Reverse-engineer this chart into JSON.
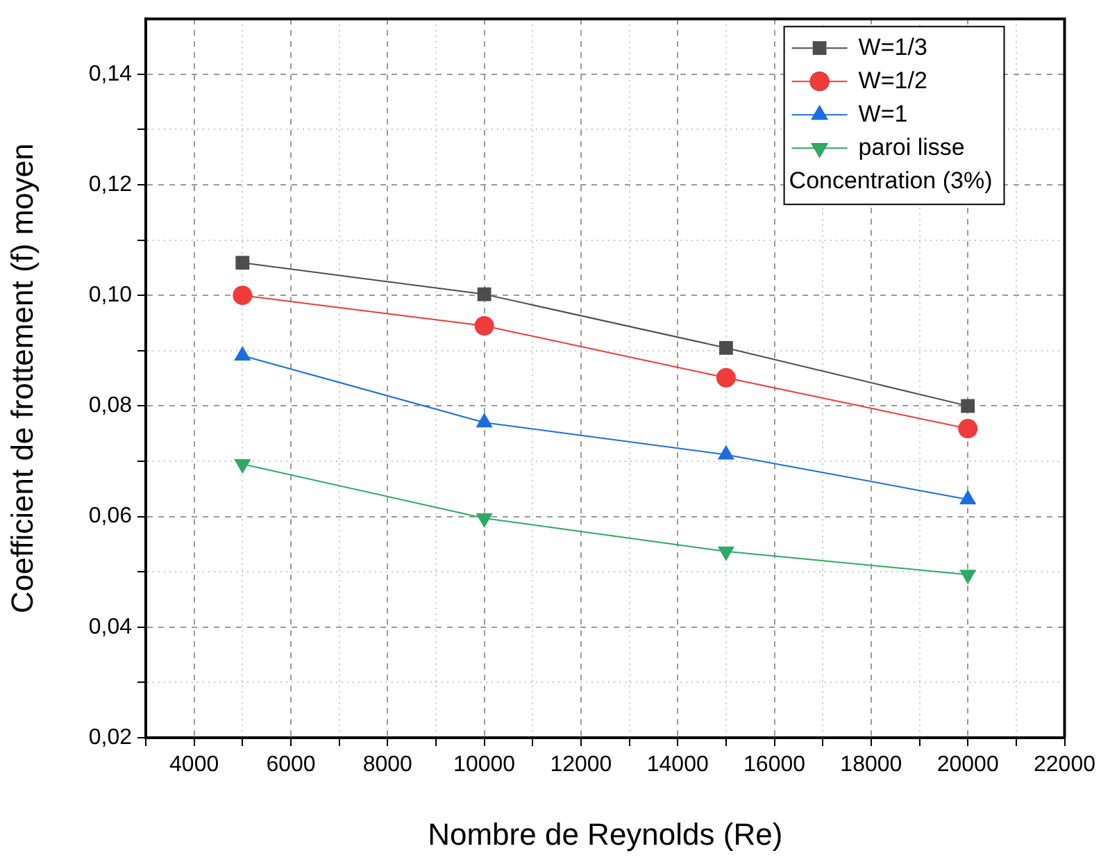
{
  "chart_data": {
    "type": "line",
    "xlabel": "Nombre de Reynolds (Re)",
    "ylabel": "Coefficient de frottement (f) moyen",
    "legend_title": "Concentration (3%)",
    "legend": "top right",
    "grid": true,
    "line_style": "solid",
    "x": [
      5000,
      10000,
      15000,
      20000
    ],
    "xlim": [
      3000,
      22000
    ],
    "xticks": [
      {
        "value": 3000,
        "label": null
      },
      4000,
      {
        "value": 5000,
        "label": null
      },
      6000,
      {
        "value": 7000,
        "label": null
      },
      8000,
      {
        "value": 9000,
        "label": null
      },
      10000,
      {
        "value": 11000,
        "label": null
      },
      12000,
      {
        "value": 13000,
        "label": null
      },
      14000,
      {
        "value": 15000,
        "label": null
      },
      16000,
      {
        "value": 17000,
        "label": null
      },
      18000,
      {
        "value": 19000,
        "label": null
      },
      20000,
      {
        "value": 21000,
        "label": null
      },
      22000
    ],
    "ylim": [
      0.02,
      0.15
    ],
    "yticks": [
      {
        "value": 0.02,
        "label": "0,02"
      },
      {
        "value": 0.03,
        "label": null
      },
      {
        "value": 0.04,
        "label": "0,04"
      },
      {
        "value": 0.05,
        "label": null
      },
      {
        "value": 0.06,
        "label": "0,06"
      },
      {
        "value": 0.07,
        "label": null
      },
      {
        "value": 0.08,
        "label": "0,08"
      },
      {
        "value": 0.09,
        "label": null
      },
      {
        "value": 0.1,
        "label": "0,10"
      },
      {
        "value": 0.11,
        "label": null
      },
      {
        "value": 0.12,
        "label": "0,12"
      },
      {
        "value": 0.13,
        "label": null
      },
      {
        "value": 0.14,
        "label": "0,14"
      }
    ],
    "series": [
      {
        "name": "W=1/3",
        "color": "#4d4d4d",
        "marker": "square",
        "values": [
          0.1059,
          0.1002,
          0.0905,
          0.08
        ]
      },
      {
        "name": "W=1/2",
        "color": "#ef3b3b",
        "marker": "circle",
        "values": [
          0.1,
          0.0945,
          0.0851,
          0.0759
        ]
      },
      {
        "name": "W=1",
        "color": "#1a6fe0",
        "marker": "triangle",
        "values": [
          0.0891,
          0.077,
          0.0712,
          0.0631
        ]
      },
      {
        "name": "paroi lisse",
        "color": "#2eaa62",
        "marker": "triangle-down",
        "values": [
          0.0695,
          0.0597,
          0.0537,
          0.0495
        ]
      }
    ]
  }
}
